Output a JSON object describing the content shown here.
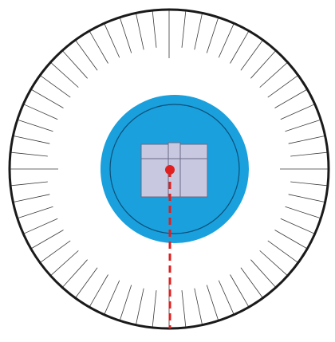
{
  "colors": {
    "background": "#ffffff",
    "outer_ring": "#1a1a1a",
    "tick": "#3a3a3a",
    "hub_fill": "#1aa0dc",
    "hub_inner_ring": "#0b4f78",
    "block_fill": "#c8c8e0",
    "block_stroke": "#6a6a86",
    "pivot": "#e02020",
    "pointer": "#e02020"
  },
  "dial": {
    "tick_count": 60,
    "long_tick_angles_deg": [
      0,
      90,
      180,
      270
    ]
  },
  "pointer": {
    "style": "dashed",
    "direction": "down"
  },
  "icons": [
    "pivot-dot-icon"
  ]
}
